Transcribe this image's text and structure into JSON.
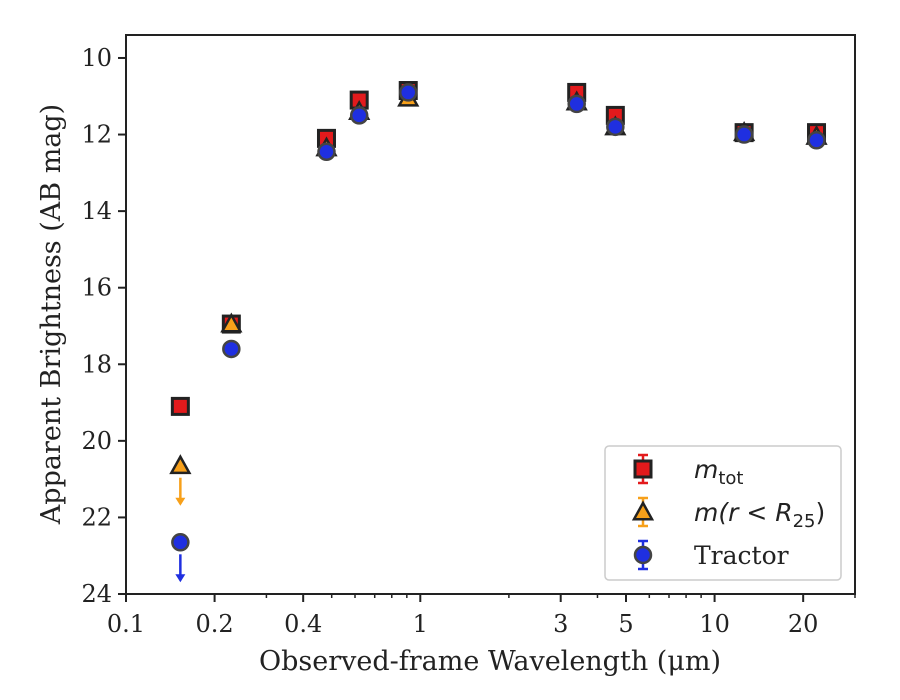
{
  "chart_data": {
    "type": "scatter",
    "x_scale": "log",
    "y_inverted": true,
    "xlabel": "Observed-frame Wavelength (μm)",
    "ylabel": "Apparent Brightness (AB mag)",
    "xlim": [
      0.1,
      30
    ],
    "ylim": [
      24,
      9.4
    ],
    "x_ticks": [
      0.1,
      0.2,
      0.4,
      1,
      3,
      5,
      10,
      20
    ],
    "x_tick_labels": [
      "0.1",
      "0.2",
      "0.4",
      "1",
      "3",
      "5",
      "10",
      "20"
    ],
    "y_ticks": [
      10,
      12,
      14,
      16,
      18,
      20,
      22,
      24
    ],
    "y_tick_labels": [
      "10",
      "12",
      "14",
      "16",
      "18",
      "20",
      "22",
      "24"
    ],
    "legend_position": "lower-right",
    "series": [
      {
        "name": "m_tot",
        "label_main": "m",
        "label_sub": "tot",
        "marker": "square",
        "color": "#e31a1c",
        "edge": "#222222",
        "points": [
          {
            "x": 0.153,
            "y": 19.1
          },
          {
            "x": 0.228,
            "y": 16.95
          },
          {
            "x": 0.48,
            "y": 12.1
          },
          {
            "x": 0.62,
            "y": 11.1
          },
          {
            "x": 0.91,
            "y": 10.85
          },
          {
            "x": 3.4,
            "y": 10.9
          },
          {
            "x": 4.6,
            "y": 11.5
          },
          {
            "x": 12.6,
            "y": 11.95
          },
          {
            "x": 22.2,
            "y": 11.95
          }
        ]
      },
      {
        "name": "m(r < R_25)",
        "label_main": "m(r < R",
        "label_sub": "25",
        "label_end": ")",
        "marker": "triangle",
        "color": "#f7a01a",
        "edge": "#222222",
        "points": [
          {
            "x": 0.153,
            "y": 20.65,
            "upper_limit": true
          },
          {
            "x": 0.228,
            "y": 16.95
          },
          {
            "x": 0.48,
            "y": 12.35
          },
          {
            "x": 0.62,
            "y": 11.4
          },
          {
            "x": 0.91,
            "y": 11.05
          },
          {
            "x": 3.4,
            "y": 11.15
          },
          {
            "x": 4.6,
            "y": 11.8
          },
          {
            "x": 12.6,
            "y": 11.95
          },
          {
            "x": 22.2,
            "y": 12.05
          }
        ]
      },
      {
        "name": "Tractor",
        "label_main": "Tractor",
        "marker": "circle",
        "color": "#1f2fe0",
        "edge": "#444444",
        "points": [
          {
            "x": 0.153,
            "y": 22.65,
            "upper_limit": true
          },
          {
            "x": 0.228,
            "y": 17.6
          },
          {
            "x": 0.48,
            "y": 12.45
          },
          {
            "x": 0.62,
            "y": 11.5
          },
          {
            "x": 0.91,
            "y": 10.9
          },
          {
            "x": 3.4,
            "y": 11.2
          },
          {
            "x": 4.6,
            "y": 11.8
          },
          {
            "x": 12.6,
            "y": 12.0
          },
          {
            "x": 22.2,
            "y": 12.15
          }
        ]
      }
    ]
  }
}
